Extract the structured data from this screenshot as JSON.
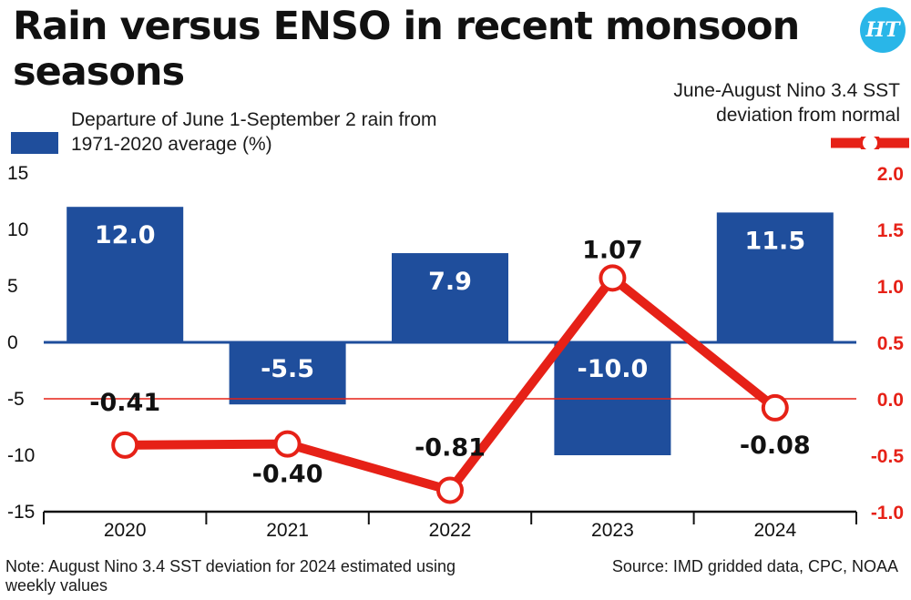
{
  "title": "Rain versus ENSO in recent monsoon seasons",
  "logo_text": "HT",
  "note": "Note: August Nino 3.4 SST deviation for 2024 estimated using weekly values",
  "source": "Source: IMD gridded data, CPC, NOAA",
  "colors": {
    "bar": "#1f4e9c",
    "line": "#e62117",
    "axis": "#111111",
    "left_ticks": "#111111",
    "right_ticks": "#e62117",
    "logo": "#29b6e8"
  },
  "chart_data": {
    "type": "bar",
    "title": "Rain versus ENSO in recent monsoon seasons",
    "categories": [
      "2020",
      "2021",
      "2022",
      "2023",
      "2024"
    ],
    "series": [
      {
        "name": "Departure of June 1-September 2 rain from 1971-2020 average (%)",
        "type": "bar",
        "axis": "left",
        "values": [
          12.0,
          -5.5,
          7.9,
          -10.0,
          11.5
        ],
        "labels": [
          "12.0",
          "-5.5",
          "7.9",
          "-10.0",
          "11.5"
        ]
      },
      {
        "name": "June-August Nino 3.4 SST deviation from normal",
        "type": "line",
        "axis": "right",
        "values": [
          -0.41,
          -0.4,
          -0.81,
          1.07,
          -0.08
        ],
        "labels": [
          "-0.41",
          "-0.40",
          "-0.81",
          "1.07",
          "-0.08"
        ]
      }
    ],
    "left_axis": {
      "ylim": [
        -15,
        15
      ],
      "ticks": [
        "15",
        "10",
        "5",
        "0",
        "-5",
        "-10",
        "-15"
      ],
      "tick_values": [
        15,
        10,
        5,
        0,
        -5,
        -10,
        -15
      ]
    },
    "right_axis": {
      "ylim": [
        -1.0,
        2.0
      ],
      "ticks": [
        "2.0",
        "1.5",
        "1.0",
        "0.5",
        "0.0",
        "-0.5",
        "-1.0"
      ],
      "tick_values": [
        2.0,
        1.5,
        1.0,
        0.5,
        0.0,
        -0.5,
        -1.0
      ]
    },
    "legend": "top",
    "grid": false
  }
}
